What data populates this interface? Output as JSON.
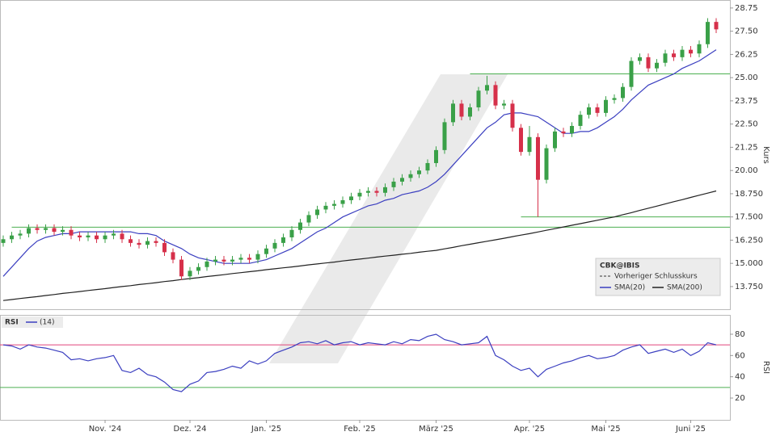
{
  "chart_data": [
    {
      "type": "candlestick",
      "legend_title": "CBK@IBIS",
      "reference_line": {
        "name": "Vorheriger Schlusskurs",
        "color": "#333333"
      },
      "y_label": "Kurs",
      "up_color": "#3aa048",
      "down_color": "#d6304a",
      "categories": [
        null,
        null,
        null,
        null,
        null,
        null,
        null,
        null,
        null,
        null,
        null,
        null,
        "Nov. '24",
        null,
        null,
        null,
        null,
        null,
        null,
        null,
        null,
        null,
        "Dez. '24",
        null,
        null,
        null,
        null,
        null,
        null,
        null,
        null,
        "Jan. '25",
        null,
        null,
        null,
        null,
        null,
        null,
        null,
        null,
        null,
        null,
        "Feb. '25",
        null,
        null,
        null,
        null,
        null,
        null,
        null,
        null,
        "März '25",
        null,
        null,
        null,
        null,
        null,
        null,
        null,
        null,
        null,
        null,
        "Apr. '25",
        null,
        null,
        null,
        null,
        null,
        null,
        null,
        null,
        "Mai '25",
        null,
        null,
        null,
        null,
        null,
        null,
        null,
        null,
        null,
        "Juni '25",
        null,
        null,
        null
      ],
      "open": [
        16.1,
        16.3,
        16.5,
        16.6,
        16.9,
        16.8,
        16.9,
        16.7,
        16.8,
        16.5,
        16.4,
        16.5,
        16.3,
        16.5,
        16.6,
        16.3,
        16.1,
        16.0,
        16.2,
        16.1,
        15.6,
        15.2,
        14.3,
        14.6,
        14.8,
        15.1,
        15.2,
        15.1,
        15.2,
        15.3,
        15.2,
        15.5,
        15.8,
        16.1,
        16.4,
        16.8,
        17.2,
        17.6,
        17.9,
        18.1,
        18.2,
        18.4,
        18.6,
        18.8,
        18.9,
        18.8,
        19.1,
        19.4,
        19.6,
        19.8,
        20.0,
        20.4,
        21.1,
        22.6,
        23.6,
        22.9,
        23.4,
        24.3,
        24.6,
        23.5,
        23.6,
        22.3,
        21.0,
        21.8,
        19.5,
        21.2,
        22.1,
        22.0,
        22.4,
        23.0,
        23.4,
        23.1,
        23.8,
        23.9,
        24.5,
        25.9,
        26.1,
        25.5,
        25.8,
        26.3,
        26.1,
        26.5,
        26.3,
        26.8,
        28.0
      ],
      "high": [
        16.5,
        16.7,
        16.8,
        17.1,
        17.1,
        17.1,
        17.1,
        17.0,
        17.0,
        16.7,
        16.7,
        16.7,
        16.7,
        16.8,
        16.8,
        16.5,
        16.3,
        16.4,
        16.4,
        16.3,
        15.8,
        15.4,
        14.8,
        15.0,
        15.3,
        15.4,
        15.4,
        15.4,
        15.5,
        15.5,
        15.7,
        16.0,
        16.3,
        16.6,
        17.0,
        17.4,
        17.8,
        18.1,
        18.3,
        18.4,
        18.6,
        18.8,
        19.0,
        19.1,
        19.1,
        19.3,
        19.6,
        19.8,
        20.0,
        20.2,
        20.6,
        21.3,
        22.8,
        23.8,
        23.8,
        23.6,
        24.5,
        25.1,
        24.8,
        23.8,
        23.8,
        22.5,
        22.4,
        22.0,
        21.4,
        22.3,
        22.3,
        22.6,
        23.2,
        23.6,
        23.6,
        24.0,
        24.1,
        24.7,
        26.1,
        26.3,
        26.3,
        26.0,
        26.5,
        26.5,
        26.7,
        26.7,
        27.0,
        28.2,
        28.2
      ],
      "low": [
        15.9,
        16.1,
        16.3,
        16.4,
        16.6,
        16.6,
        16.5,
        16.5,
        16.3,
        16.2,
        16.2,
        16.1,
        16.1,
        16.3,
        16.1,
        15.9,
        15.8,
        15.8,
        15.9,
        15.4,
        15.0,
        14.1,
        14.1,
        14.4,
        14.6,
        14.9,
        14.9,
        14.9,
        15.0,
        15.0,
        15.0,
        15.3,
        15.6,
        15.9,
        16.2,
        16.6,
        17.0,
        17.4,
        17.7,
        17.9,
        18.0,
        18.2,
        18.4,
        18.6,
        18.6,
        18.6,
        18.9,
        19.2,
        19.4,
        19.6,
        19.8,
        20.2,
        20.9,
        22.4,
        22.7,
        22.7,
        23.2,
        24.1,
        23.3,
        23.3,
        22.1,
        20.8,
        20.8,
        17.5,
        19.3,
        21.0,
        21.8,
        21.8,
        22.2,
        22.8,
        22.9,
        22.9,
        23.6,
        23.7,
        24.3,
        25.7,
        25.3,
        25.3,
        25.6,
        25.9,
        25.9,
        26.1,
        26.1,
        26.6,
        27.4
      ],
      "close": [
        16.3,
        16.5,
        16.6,
        16.9,
        16.8,
        16.9,
        16.7,
        16.8,
        16.5,
        16.4,
        16.5,
        16.3,
        16.5,
        16.6,
        16.3,
        16.1,
        16.0,
        16.2,
        16.1,
        15.6,
        15.2,
        14.3,
        14.6,
        14.8,
        15.1,
        15.2,
        15.1,
        15.2,
        15.3,
        15.2,
        15.5,
        15.8,
        16.1,
        16.4,
        16.8,
        17.2,
        17.6,
        17.9,
        18.1,
        18.2,
        18.4,
        18.6,
        18.8,
        18.9,
        18.8,
        19.1,
        19.4,
        19.6,
        19.8,
        20.0,
        20.4,
        21.1,
        22.6,
        23.6,
        22.9,
        23.4,
        24.3,
        24.6,
        23.5,
        23.6,
        22.3,
        21.0,
        21.8,
        19.5,
        21.2,
        22.1,
        22.0,
        22.4,
        23.0,
        23.4,
        23.1,
        23.8,
        23.9,
        24.5,
        25.9,
        26.1,
        25.5,
        25.8,
        26.3,
        26.1,
        26.5,
        26.3,
        26.8,
        28.0,
        27.6
      ],
      "series": [
        {
          "name": "SMA(20)",
          "color": "#3b3fc0",
          "values": [
            14.3,
            14.8,
            15.3,
            15.8,
            16.2,
            16.4,
            16.5,
            16.6,
            16.6,
            16.7,
            16.7,
            16.7,
            16.7,
            16.7,
            16.7,
            16.7,
            16.6,
            16.6,
            16.5,
            16.2,
            16.0,
            15.8,
            15.5,
            15.3,
            15.2,
            15.1,
            15.0,
            15.0,
            15.0,
            15.0,
            15.1,
            15.2,
            15.4,
            15.6,
            15.8,
            16.1,
            16.4,
            16.7,
            16.9,
            17.2,
            17.5,
            17.7,
            17.9,
            18.1,
            18.2,
            18.4,
            18.5,
            18.7,
            18.8,
            18.9,
            19.1,
            19.4,
            19.8,
            20.3,
            20.8,
            21.3,
            21.8,
            22.3,
            22.6,
            23.0,
            23.1,
            23.1,
            23.0,
            22.9,
            22.6,
            22.3,
            22.0,
            22.0,
            22.1,
            22.1,
            22.3,
            22.6,
            22.9,
            23.3,
            23.8,
            24.2,
            24.6,
            24.8,
            25.0,
            25.2,
            25.5,
            25.7,
            25.9,
            26.2,
            26.5
          ]
        },
        {
          "name": "SMA(200)",
          "color": "#222222",
          "values": [
            13.0,
            13.05,
            13.11,
            13.16,
            13.21,
            13.27,
            13.32,
            13.38,
            13.43,
            13.48,
            13.54,
            13.59,
            13.64,
            13.7,
            13.75,
            13.8,
            13.86,
            13.91,
            13.96,
            14.02,
            14.07,
            14.13,
            14.18,
            14.23,
            14.29,
            14.34,
            14.39,
            14.45,
            14.5,
            14.55,
            14.6,
            14.66,
            14.71,
            14.76,
            14.81,
            14.86,
            14.92,
            14.97,
            15.02,
            15.07,
            15.13,
            15.18,
            15.23,
            15.28,
            15.34,
            15.39,
            15.44,
            15.49,
            15.54,
            15.6,
            15.65,
            15.7,
            15.78,
            15.86,
            15.95,
            16.03,
            16.11,
            16.19,
            16.27,
            16.35,
            16.44,
            16.52,
            16.6,
            16.69,
            16.78,
            16.87,
            16.96,
            17.05,
            17.14,
            17.23,
            17.32,
            17.41,
            17.5,
            17.62,
            17.73,
            17.85,
            17.97,
            18.08,
            18.2,
            18.32,
            18.43,
            18.55,
            18.67,
            18.78,
            18.9
          ]
        }
      ],
      "hlines": [
        {
          "value": 16.95,
          "start": 1,
          "color": "#4caf50"
        },
        {
          "value": 17.5,
          "start": 61,
          "color": "#4caf50"
        },
        {
          "value": 25.2,
          "start": 55,
          "color": "#4caf50"
        }
      ],
      "ylim": [
        12.53,
        29.18
      ],
      "yticks": [
        28.75,
        {
          "value": 27.5,
          "label": "27.50"
        },
        26.25,
        {
          "value": 25,
          "label": "25.00"
        },
        23.75,
        {
          "value": 22.5,
          "label": "22.50"
        },
        21.25,
        {
          "value": 20,
          "label": "20.00"
        },
        {
          "value": 18.75,
          "label": "18.750"
        },
        {
          "value": 17.5,
          "label": "17.500"
        },
        {
          "value": 16.25,
          "label": "16.250"
        },
        {
          "value": 15,
          "label": "15.000"
        },
        {
          "value": 13.75,
          "label": "13.750"
        }
      ]
    },
    {
      "type": "line",
      "title": "RSI",
      "y_label": "RSI",
      "series": [
        {
          "name": "(14)",
          "color": "#3b3fc0",
          "values": [
            70,
            69,
            66,
            70,
            68,
            67,
            65,
            63,
            56,
            57,
            55,
            57,
            58,
            60,
            46,
            44,
            48,
            42,
            40,
            35,
            28,
            26,
            33,
            36,
            44,
            45,
            47,
            50,
            48,
            55,
            52,
            55,
            62,
            65,
            68,
            72,
            73,
            71,
            74,
            70,
            72,
            73,
            70,
            72,
            71,
            70,
            73,
            71,
            75,
            74,
            78,
            80,
            75,
            73,
            70,
            71,
            72,
            78,
            60,
            56,
            50,
            46,
            48,
            40,
            47,
            50,
            53,
            55,
            58,
            60,
            57,
            58,
            60,
            65,
            68,
            70,
            62,
            64,
            66,
            63,
            66,
            60,
            64,
            72,
            70
          ]
        }
      ],
      "levels": [
        {
          "value": 70,
          "color": "#e0457b"
        },
        {
          "value": 30,
          "color": "#4caf50"
        }
      ],
      "ylim": [
        -0.5,
        98.2
      ],
      "yticks": [
        20,
        40,
        60,
        80
      ]
    }
  ]
}
